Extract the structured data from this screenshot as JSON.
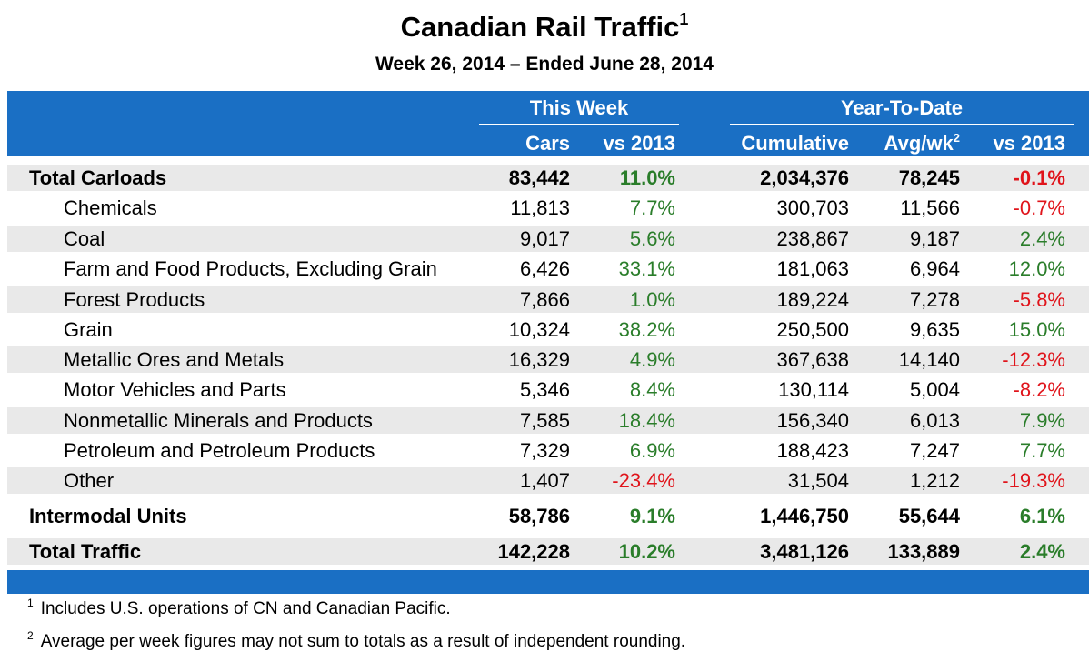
{
  "chart_data": {
    "type": "table",
    "title": "Canadian Rail Traffic",
    "title_note": "1",
    "subtitle": "Week 26, 2014 – Ended June 28, 2014",
    "column_groups": [
      {
        "label": "This Week",
        "columns": [
          "Cars",
          "vs 2013"
        ]
      },
      {
        "label": "Year-To-Date",
        "columns": [
          "Cumulative",
          "Avg/wk",
          "vs 2013"
        ]
      }
    ],
    "columns": [
      "Cars",
      "vs 2013",
      "Cumulative",
      "Avg/wk",
      "vs 2013"
    ],
    "avg_note": "2",
    "rows": [
      {
        "label": "Total Carloads",
        "bold": true,
        "indent": false,
        "cars": "83,442",
        "vs2013_week": "11.0%",
        "week_sign": "pos",
        "cumulative": "2,034,376",
        "avg_wk": "78,245",
        "vs2013_ytd": "-0.1%",
        "ytd_sign": "neg"
      },
      {
        "label": "Chemicals",
        "bold": false,
        "indent": true,
        "cars": "11,813",
        "vs2013_week": "7.7%",
        "week_sign": "pos",
        "cumulative": "300,703",
        "avg_wk": "11,566",
        "vs2013_ytd": "-0.7%",
        "ytd_sign": "neg"
      },
      {
        "label": "Coal",
        "bold": false,
        "indent": true,
        "cars": "9,017",
        "vs2013_week": "5.6%",
        "week_sign": "pos",
        "cumulative": "238,867",
        "avg_wk": "9,187",
        "vs2013_ytd": "2.4%",
        "ytd_sign": "pos"
      },
      {
        "label": "Farm and Food Products, Excluding Grain",
        "bold": false,
        "indent": true,
        "cars": "6,426",
        "vs2013_week": "33.1%",
        "week_sign": "pos",
        "cumulative": "181,063",
        "avg_wk": "6,964",
        "vs2013_ytd": "12.0%",
        "ytd_sign": "pos"
      },
      {
        "label": "Forest Products",
        "bold": false,
        "indent": true,
        "cars": "7,866",
        "vs2013_week": "1.0%",
        "week_sign": "pos",
        "cumulative": "189,224",
        "avg_wk": "7,278",
        "vs2013_ytd": "-5.8%",
        "ytd_sign": "neg"
      },
      {
        "label": "Grain",
        "bold": false,
        "indent": true,
        "cars": "10,324",
        "vs2013_week": "38.2%",
        "week_sign": "pos",
        "cumulative": "250,500",
        "avg_wk": "9,635",
        "vs2013_ytd": "15.0%",
        "ytd_sign": "pos"
      },
      {
        "label": "Metallic Ores and Metals",
        "bold": false,
        "indent": true,
        "cars": "16,329",
        "vs2013_week": "4.9%",
        "week_sign": "pos",
        "cumulative": "367,638",
        "avg_wk": "14,140",
        "vs2013_ytd": "-12.3%",
        "ytd_sign": "neg"
      },
      {
        "label": "Motor Vehicles and Parts",
        "bold": false,
        "indent": true,
        "cars": "5,346",
        "vs2013_week": "8.4%",
        "week_sign": "pos",
        "cumulative": "130,114",
        "avg_wk": "5,004",
        "vs2013_ytd": "-8.2%",
        "ytd_sign": "neg"
      },
      {
        "label": "Nonmetallic Minerals and Products",
        "bold": false,
        "indent": true,
        "cars": "7,585",
        "vs2013_week": "18.4%",
        "week_sign": "pos",
        "cumulative": "156,340",
        "avg_wk": "6,013",
        "vs2013_ytd": "7.9%",
        "ytd_sign": "pos"
      },
      {
        "label": "Petroleum and Petroleum Products",
        "bold": false,
        "indent": true,
        "cars": "7,329",
        "vs2013_week": "6.9%",
        "week_sign": "pos",
        "cumulative": "188,423",
        "avg_wk": "7,247",
        "vs2013_ytd": "7.7%",
        "ytd_sign": "pos"
      },
      {
        "label": "Other",
        "bold": false,
        "indent": true,
        "cars": "1,407",
        "vs2013_week": "-23.4%",
        "week_sign": "neg",
        "cumulative": "31,504",
        "avg_wk": "1,212",
        "vs2013_ytd": "-19.3%",
        "ytd_sign": "neg"
      },
      {
        "label": "Intermodal Units",
        "bold": true,
        "indent": false,
        "cars": "58,786",
        "vs2013_week": "9.1%",
        "week_sign": "pos",
        "cumulative": "1,446,750",
        "avg_wk": "55,644",
        "vs2013_ytd": "6.1%",
        "ytd_sign": "pos"
      },
      {
        "label": "Total Traffic",
        "bold": true,
        "indent": false,
        "cars": "142,228",
        "vs2013_week": "10.2%",
        "week_sign": "pos",
        "cumulative": "3,481,126",
        "avg_wk": "133,889",
        "vs2013_ytd": "2.4%",
        "ytd_sign": "pos"
      }
    ],
    "footnotes": [
      {
        "mark": "1",
        "text": "Includes U.S. operations of CN and Canadian Pacific."
      },
      {
        "mark": "2",
        "text": "Average per week figures may not sum to totals as a result of independent rounding."
      }
    ]
  },
  "colors": {
    "header_band": "#1a6fc4",
    "row_stripe": "#e9e9e9",
    "positive": "#2a7d2a",
    "negative": "#e0141b"
  }
}
